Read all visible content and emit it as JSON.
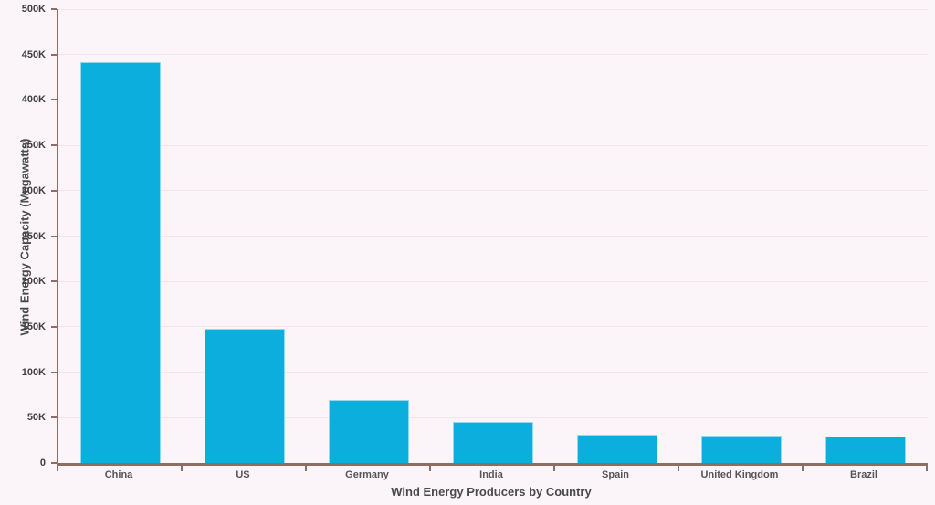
{
  "chart_data": {
    "type": "bar",
    "title": "",
    "xlabel": "Wind Energy Producers by Country",
    "ylabel": "Wind Energy Capacity (Megawatts)",
    "categories": [
      "China",
      "US",
      "Germany",
      "India",
      "Spain",
      "United Kingdom",
      "Brazil"
    ],
    "values": [
      442000,
      148000,
      69500,
      45000,
      31000,
      30000,
      29000
    ],
    "ylim": [
      0,
      500000
    ],
    "ytick_step": 50000,
    "ytick_labels": [
      "0",
      "50K",
      "100K",
      "150K",
      "200K",
      "250K",
      "300K",
      "350K",
      "400K",
      "450K",
      "500K"
    ],
    "grid": true,
    "legend": "none"
  },
  "colors": {
    "background": "#FBF5FA",
    "bar": "#0BAEDC",
    "axis": "#8D6E63",
    "gridline": "#EFE6EE",
    "tick_text": "#3F3F3F",
    "category_text": "#555555",
    "title_text": "#4A4A4A"
  }
}
